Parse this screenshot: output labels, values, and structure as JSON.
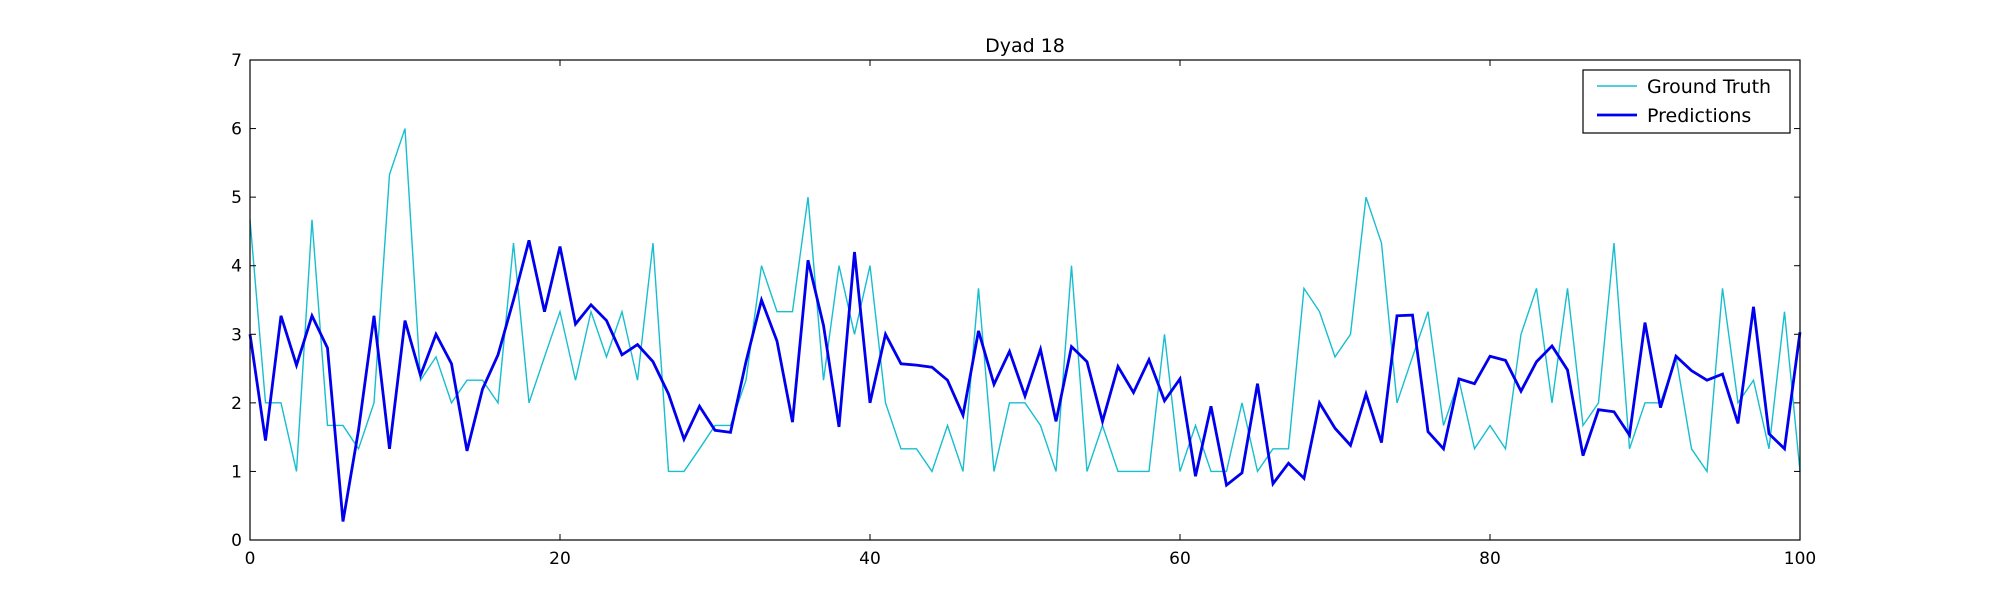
{
  "chart_data": {
    "type": "line",
    "title": "Dyad 18",
    "xlabel": "",
    "ylabel": "",
    "xlim": [
      0,
      100
    ],
    "ylim": [
      0,
      7
    ],
    "xticks": [
      0,
      20,
      40,
      60,
      80,
      100
    ],
    "yticks": [
      0,
      1,
      2,
      3,
      4,
      5,
      6,
      7
    ],
    "grid": false,
    "legend_position": "top-right",
    "series": [
      {
        "name": "Ground Truth",
        "color": "#17becf",
        "values": [
          4.67,
          2.0,
          2.0,
          1.0,
          4.67,
          1.67,
          1.67,
          1.33,
          2.0,
          5.33,
          6.0,
          2.33,
          2.67,
          2.0,
          2.33,
          2.33,
          2.0,
          4.33,
          2.0,
          2.67,
          3.33,
          2.33,
          3.33,
          2.67,
          3.33,
          2.33,
          4.33,
          1.0,
          1.0,
          1.33,
          1.67,
          1.67,
          2.33,
          4.0,
          3.33,
          3.33,
          5.0,
          2.33,
          4.0,
          3.0,
          4.0,
          2.0,
          1.33,
          1.33,
          1.0,
          1.67,
          1.0,
          3.67,
          1.0,
          2.0,
          2.0,
          1.67,
          1.0,
          4.0,
          1.0,
          1.67,
          1.0,
          1.0,
          1.0,
          3.0,
          1.0,
          1.67,
          1.0,
          1.0,
          2.0,
          1.0,
          1.33,
          1.33,
          3.67,
          3.33,
          2.67,
          3.0,
          5.0,
          4.33,
          2.0,
          2.67,
          3.33,
          1.67,
          2.33,
          1.33,
          1.67,
          1.33,
          3.0,
          3.67,
          2.0,
          3.67,
          1.67,
          2.0,
          4.33,
          1.33,
          2.0,
          2.0,
          2.67,
          1.33,
          1.0,
          3.67,
          2.0,
          2.33,
          1.33,
          3.33,
          1.0
        ]
      },
      {
        "name": "Predictions",
        "color": "#0000ee",
        "values": [
          3.0,
          1.45,
          3.27,
          2.55,
          3.27,
          2.8,
          0.27,
          1.6,
          3.27,
          1.33,
          3.2,
          2.4,
          3.0,
          2.57,
          1.3,
          2.2,
          2.7,
          3.5,
          4.37,
          3.33,
          4.28,
          3.15,
          3.43,
          3.2,
          2.7,
          2.85,
          2.6,
          2.13,
          1.47,
          1.95,
          1.6,
          1.57,
          2.6,
          3.5,
          2.9,
          1.72,
          4.08,
          3.13,
          1.65,
          4.2,
          2.0,
          3.0,
          2.57,
          2.55,
          2.52,
          2.33,
          1.82,
          3.05,
          2.27,
          2.75,
          2.1,
          2.78,
          1.73,
          2.82,
          2.6,
          1.73,
          2.53,
          2.15,
          2.63,
          2.03,
          2.35,
          0.93,
          1.95,
          0.8,
          0.98,
          2.28,
          0.82,
          1.12,
          0.9,
          2.0,
          1.63,
          1.38,
          2.13,
          1.42,
          3.27,
          3.28,
          1.58,
          1.33,
          2.35,
          2.28,
          2.68,
          2.62,
          2.17,
          2.6,
          2.83,
          2.48,
          1.23,
          1.9,
          1.87,
          1.53,
          3.17,
          1.93,
          2.68,
          2.47,
          2.33,
          2.42,
          1.7,
          3.4,
          1.55,
          1.33,
          3.03
        ]
      }
    ]
  }
}
